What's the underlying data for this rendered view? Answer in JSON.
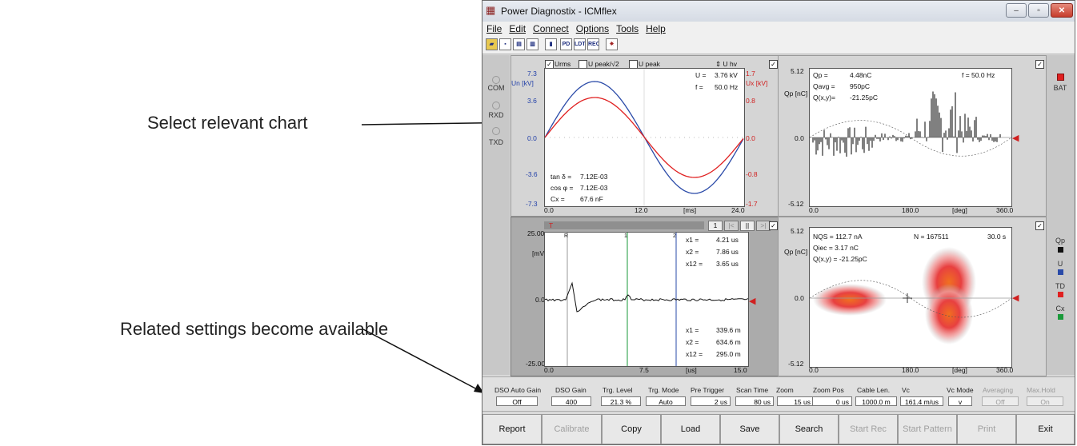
{
  "annotations": {
    "select_chart": "Select relevant chart",
    "related_settings": "Related settings become available"
  },
  "window": {
    "title": "Power Diagnostix - ICMflex",
    "controls": [
      "–",
      "▫",
      "✕"
    ]
  },
  "menu": [
    "File",
    "Edit",
    "Connect",
    "Options",
    "Tools",
    "Help"
  ],
  "toolbar": {
    "icons": [
      "open-icon",
      "save-icon",
      "copy-icon",
      "print-icon",
      "device-icon",
      "pd-icon",
      "ldt-icon",
      "rec-icon",
      "pattern-icon"
    ],
    "labels": [
      "",
      "",
      "",
      "",
      "",
      "PD",
      "LDT",
      "REC",
      ""
    ]
  },
  "rail_left": {
    "items": [
      "COM",
      "RXD",
      "TXD"
    ]
  },
  "rail_right": {
    "bat": "BAT",
    "legend": [
      {
        "label": "Qp",
        "color": "#111111"
      },
      {
        "label": "U",
        "color": "#2a4aa8"
      },
      {
        "label": "TD",
        "color": "#e02020"
      },
      {
        "label": "Cx",
        "color": "#1a9a3a"
      }
    ]
  },
  "chart_voltage": {
    "checkbox_labels": [
      "Urms",
      "U peak/√2",
      "U peak"
    ],
    "u_hv": "U hv",
    "y_left_label": "Un [kV]",
    "y_right_label": "Ux [kV]",
    "y_left_ticks": [
      "7.3",
      "3.6",
      "0.0",
      "-3.6",
      "-7.3"
    ],
    "y_right_ticks": [
      "1.7",
      "0.8",
      "0.0",
      "-0.8",
      "-1.7"
    ],
    "x_ticks": [
      "0.0",
      "12.0",
      "24.0"
    ],
    "x_unit": "[ms]",
    "readout": [
      [
        "U =",
        "3.76 kV"
      ],
      [
        "f =",
        "50.0 Hz"
      ]
    ],
    "stats": [
      [
        "tan δ =",
        "7.12E-03"
      ],
      [
        "cos φ =",
        "7.12E-03"
      ],
      [
        "Cx =",
        "67.6 nF"
      ]
    ]
  },
  "chart_pd_phase": {
    "y_label": "Qp [nC]",
    "y_ticks": [
      "5.12",
      "0.0",
      "-5.12"
    ],
    "x_ticks": [
      "0.0",
      "180.0",
      "360.0"
    ],
    "x_unit": "[deg]",
    "readout": [
      [
        "Qp =",
        "4.48nC"
      ],
      [
        "Qavg =",
        "950pC"
      ],
      [
        "Q(x,y)=",
        "-21.25pC"
      ]
    ],
    "freq": "f =   50.0 Hz"
  },
  "chart_dso": {
    "y_unit": "[mV]",
    "y_ticks": [
      "25.00",
      "0.0",
      "-25.00"
    ],
    "x_ticks": [
      "0.0",
      "7.5",
      "15.0"
    ],
    "x_unit": "[us]",
    "nav": [
      "1",
      "|<",
      "||",
      ">|"
    ],
    "cursor_marks": [
      "R",
      "1",
      "2"
    ],
    "top_readout": [
      [
        "x1 =",
        "4.21 us"
      ],
      [
        "x2 =",
        "7.86 us"
      ],
      [
        "x12 =",
        "3.65 us"
      ]
    ],
    "bottom_readout": [
      [
        "x1 =",
        "339.6 m"
      ],
      [
        "x2 =",
        "634.6 m"
      ],
      [
        "x12 =",
        "295.0 m"
      ]
    ]
  },
  "chart_prpd": {
    "y_label": "Qp [nC]",
    "y_ticks": [
      "5.12",
      "0.0",
      "-5.12"
    ],
    "x_ticks": [
      "0.0",
      "180.0",
      "360.0"
    ],
    "x_unit": "[deg]",
    "readout": [
      "NQS = 112.7 nA",
      "Qiec = 3.17 nC",
      "Q(x,y) = -21.25pC"
    ],
    "count": "N = 167511",
    "time": "30.0 s"
  },
  "settings": [
    {
      "label": "DSO Auto Gain",
      "value": "Off",
      "enabled": true
    },
    {
      "label": "DSO Gain",
      "value": "400",
      "enabled": true
    },
    {
      "label": "Trg. Level",
      "value": "21.3 %",
      "enabled": true
    },
    {
      "label": "Trg. Mode",
      "value": "Auto",
      "enabled": true
    },
    {
      "label": "Pre Trigger",
      "value": "2 us",
      "enabled": true
    },
    {
      "label": "Scan Time",
      "value": "80 us",
      "enabled": true
    },
    {
      "label": "Zoom",
      "value": "15 us",
      "enabled": true
    },
    {
      "label": "Zoom Pos",
      "value": "0 us",
      "enabled": true
    },
    {
      "label": "Cable Len.",
      "value": "1000.0  m",
      "enabled": true
    },
    {
      "label": "Vc",
      "value": "161.4 m/us",
      "enabled": true
    },
    {
      "label": "Vc Mode",
      "value": "v",
      "enabled": true
    },
    {
      "label": "Averaging",
      "value": "Off",
      "enabled": false
    },
    {
      "label": "Max.Hold",
      "value": "On",
      "enabled": false
    }
  ],
  "buttons": [
    {
      "label": "Report",
      "enabled": true
    },
    {
      "label": "Calibrate",
      "enabled": false
    },
    {
      "label": "Copy",
      "enabled": true
    },
    {
      "label": "Load",
      "enabled": true
    },
    {
      "label": "Save",
      "enabled": true
    },
    {
      "label": "Search",
      "enabled": true
    },
    {
      "label": "Start Rec",
      "enabled": false
    },
    {
      "label": "Start Pattern",
      "enabled": false
    },
    {
      "label": "Print",
      "enabled": false
    },
    {
      "label": "Exit",
      "enabled": true
    }
  ]
}
